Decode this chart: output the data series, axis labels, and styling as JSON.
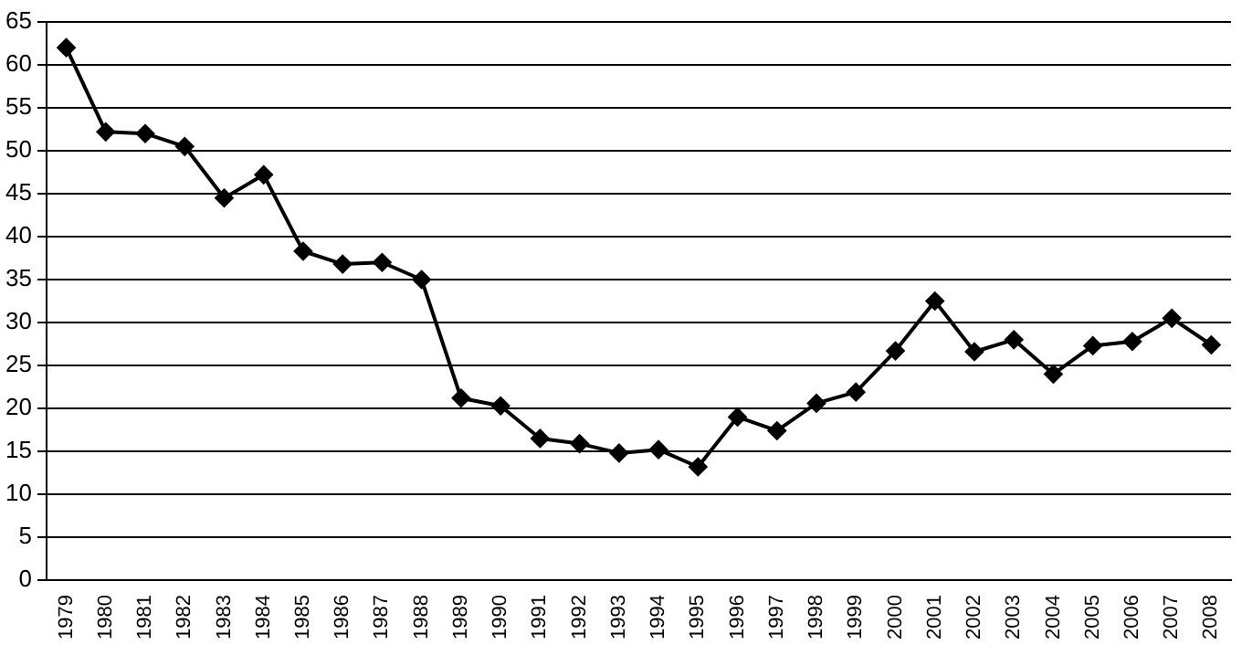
{
  "chart_data": {
    "type": "line",
    "categories": [
      "1979",
      "1980",
      "1981",
      "1982",
      "1983",
      "1984",
      "1985",
      "1986",
      "1987",
      "1988",
      "1989",
      "1990",
      "1991",
      "1992",
      "1993",
      "1994",
      "1995",
      "1996",
      "1997",
      "1998",
      "1999",
      "2000",
      "2001",
      "2002",
      "2003",
      "2004",
      "2005",
      "2006",
      "2007",
      "2008"
    ],
    "series": [
      {
        "color": "#000000",
        "values": [
          62,
          52.2,
          52,
          50.5,
          44.5,
          47.2,
          38.3,
          36.8,
          37,
          35,
          21.2,
          20.3,
          16.5,
          15.9,
          14.8,
          15.2,
          13.2,
          19,
          17.4,
          20.6,
          21.9,
          26.7,
          32.5,
          26.6,
          28,
          24,
          27.3,
          27.8,
          30.5,
          27.4
        ]
      }
    ],
    "ylim": [
      0,
      65
    ],
    "yticks": [
      0,
      5,
      10,
      15,
      20,
      25,
      30,
      35,
      40,
      45,
      50,
      55,
      60,
      65
    ],
    "grid": "y",
    "legend": false,
    "marker": "diamond",
    "line_style": "solid"
  }
}
